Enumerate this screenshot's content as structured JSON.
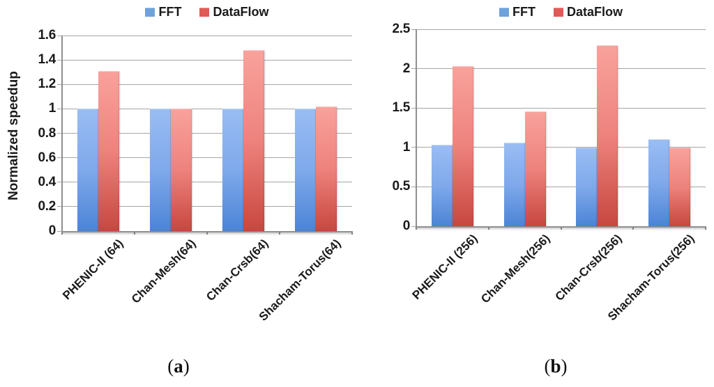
{
  "figure": {
    "captions": [
      {
        "open": "(",
        "letter": "a",
        "close": ")"
      },
      {
        "open": "(",
        "letter": "b",
        "close": ")"
      }
    ]
  },
  "legend": {
    "items": [
      {
        "label": "FFT",
        "color": "#6fa2dc"
      },
      {
        "label": "DataFlow",
        "color": "#e05b57"
      }
    ]
  },
  "chart_data": [
    {
      "type": "bar",
      "panel": "a",
      "title": "",
      "xlabel": "",
      "ylabel": "Normalized speedup",
      "categories": [
        "PHENIC-II (64)",
        "Chan-Mesh(64)",
        "Chan-Crsb(64)",
        "Shacham-Torus(64)"
      ],
      "series": [
        {
          "name": "FFT",
          "values": [
            1.0,
            1.0,
            1.0,
            1.0
          ]
        },
        {
          "name": "DataFlow",
          "values": [
            1.31,
            1.0,
            1.48,
            1.02
          ]
        }
      ],
      "ylim": [
        0,
        1.6
      ],
      "ytick_step": 0.2,
      "ytick_labels": [
        "0",
        "0.2",
        "0.4",
        "0.6",
        "0.8",
        "1",
        "1.2",
        "1.4",
        "1.6"
      ],
      "grid": true,
      "legend_position": "top"
    },
    {
      "type": "bar",
      "panel": "b",
      "title": "",
      "xlabel": "",
      "ylabel": "",
      "categories": [
        "PHENIC-II (256)",
        "Chan-Mesh(256)",
        "Chan-Crsb(256)",
        "Shacham-Torus(256)"
      ],
      "series": [
        {
          "name": "FFT",
          "values": [
            1.03,
            1.06,
            1.0,
            1.1
          ]
        },
        {
          "name": "DataFlow",
          "values": [
            2.03,
            1.46,
            2.3,
            1.0
          ]
        }
      ],
      "ylim": [
        0,
        2.5
      ],
      "ytick_step": 0.5,
      "ytick_labels": [
        "0",
        "0.5",
        "1",
        "1.5",
        "2",
        "2.5"
      ],
      "grid": true,
      "legend_position": "top"
    }
  ],
  "style": {
    "bar_blue_top": "#9abdf3",
    "bar_blue_mid": "#7fa9eb",
    "bar_blue_bottom": "#4b84d6",
    "bar_red_top": "#f9a29c",
    "bar_red_mid": "#ee827d",
    "bar_red_bottom": "#c7473f",
    "gridline": "#a6a6a6",
    "axis": "#8f8f8f",
    "text": "#1a1a1a"
  }
}
